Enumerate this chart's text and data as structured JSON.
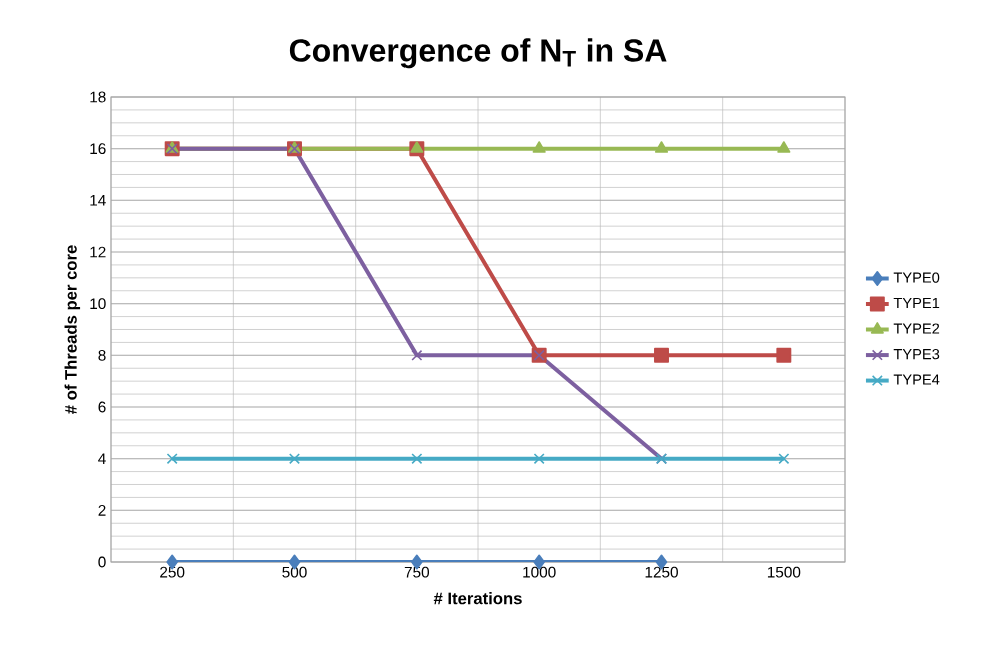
{
  "chart_data": {
    "type": "line",
    "title": "Convergence of N$_{T}$ in SA",
    "xlabel": "# Iterations",
    "ylabel": "# of Threads per core",
    "categories": [
      "250",
      "500",
      "750",
      "1000",
      "1250",
      "1500"
    ],
    "series": [
      {
        "name": "TYPE0",
        "color": "#4a7ebb",
        "marker": "diamond",
        "values": [
          0,
          0,
          0,
          0,
          0,
          null
        ]
      },
      {
        "name": "TYPE1",
        "color": "#be4b48",
        "marker": "square",
        "values": [
          16,
          16,
          16,
          8,
          8,
          8
        ]
      },
      {
        "name": "TYPE2",
        "color": "#98b954",
        "marker": "triangle",
        "values": [
          16,
          16,
          16,
          16,
          16,
          16
        ]
      },
      {
        "name": "TYPE3",
        "color": "#7d60a0",
        "marker": "cross",
        "values": [
          16,
          16,
          8,
          8,
          4,
          null
        ]
      },
      {
        "name": "TYPE4",
        "color": "#46aac5",
        "marker": "cross",
        "values": [
          4,
          4,
          4,
          4,
          4,
          4
        ]
      }
    ],
    "ylim": [
      0,
      18
    ],
    "yticks": [
      0,
      2,
      4,
      6,
      8,
      10,
      12,
      14,
      16,
      18
    ],
    "grid": true,
    "legend": "right",
    "line_style": "solid"
  }
}
